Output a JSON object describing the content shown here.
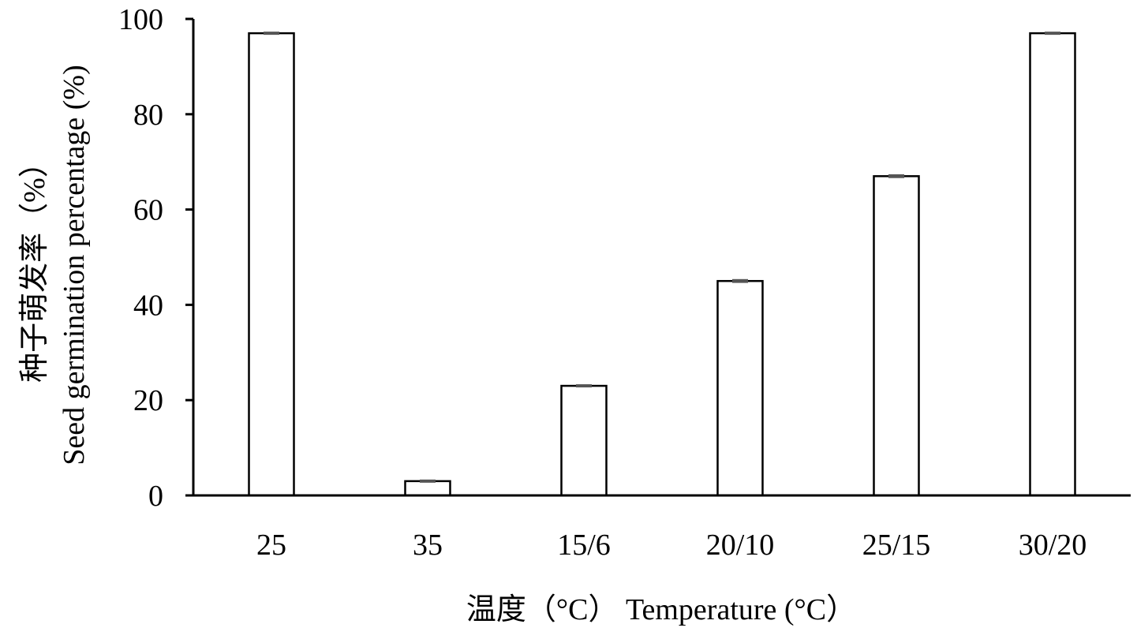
{
  "chart_data": {
    "type": "bar",
    "categories": [
      "25",
      "35",
      "15/6",
      "20/10",
      "25/15",
      "30/20"
    ],
    "values": [
      97,
      3,
      23,
      45,
      67,
      97
    ],
    "error": [
      0.3,
      0.3,
      0.3,
      0.4,
      0.4,
      0.2
    ],
    "title": "",
    "xlabel": "温度（°C） Temperature (°C）",
    "ylabel_line1": "种子萌发率（%）",
    "ylabel_line2": "Seed germination percentage (%)",
    "ylim": [
      0,
      100
    ],
    "yticks": [
      0,
      20,
      40,
      60,
      80,
      100
    ],
    "grid": false,
    "legend": "none",
    "colors": {
      "bar_fill": "#ffffff",
      "bar_stroke": "#000000",
      "axis": "#000000",
      "error_bar": "#555555"
    }
  }
}
